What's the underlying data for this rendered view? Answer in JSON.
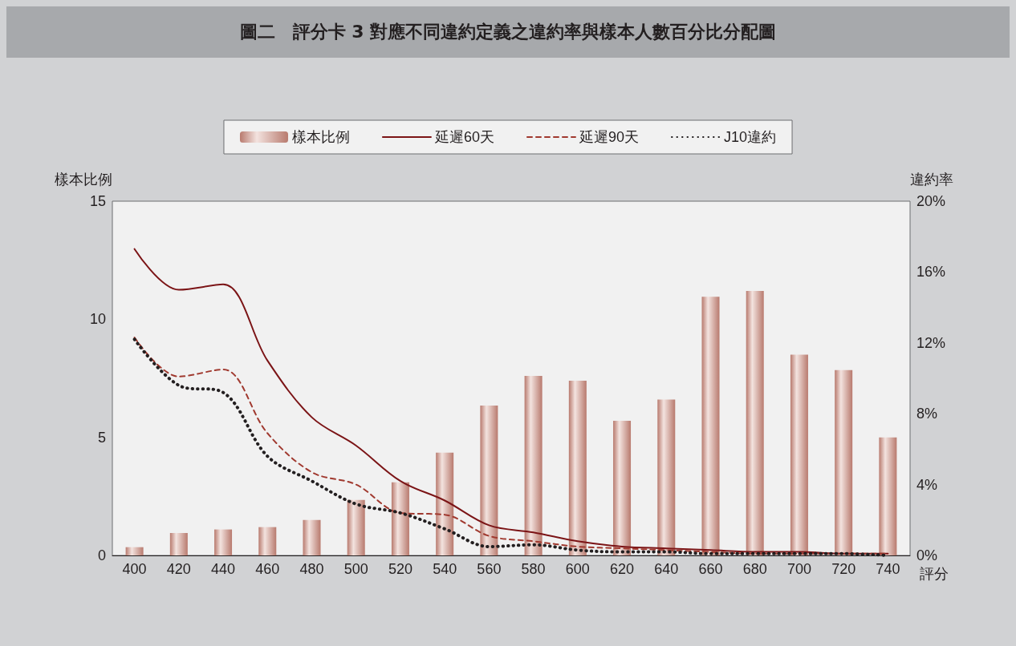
{
  "chart_data": {
    "type": "bar",
    "title": "圖二　評分卡 3 對應不同違約定義之違約率與樣本人數百分比分配圖",
    "xlabel": "評分",
    "ylabel": "樣本比例",
    "y2label": "違約率",
    "categories": [
      "400",
      "420",
      "440",
      "460",
      "480",
      "500",
      "520",
      "540",
      "560",
      "580",
      "600",
      "620",
      "640",
      "660",
      "680",
      "700",
      "720",
      "740"
    ],
    "series": [
      {
        "name": "樣本比例",
        "color": "#b87a6e",
        "values": [
          0.35,
          0.95,
          1.1,
          1.2,
          1.5,
          2.35,
          3.1,
          4.35,
          6.35,
          7.6,
          7.4,
          5.7,
          6.6,
          10.95,
          11.2,
          8.5,
          7.85,
          5.0
        ]
      },
      {
        "name": "延遲60天",
        "type": "line",
        "axis": "y2",
        "color": "#7b1416",
        "line_style": "solid",
        "values": [
          17.3,
          15.0,
          15.3,
          11.0,
          7.8,
          6.2,
          4.2,
          3.1,
          1.7,
          1.3,
          0.8,
          0.5,
          0.4,
          0.3,
          0.2,
          0.2,
          0.1,
          0.1
        ]
      },
      {
        "name": "延遲90天",
        "type": "line",
        "axis": "y2",
        "color": "#a0392f",
        "line_style": "dashed",
        "values": [
          12.3,
          10.1,
          10.5,
          6.9,
          4.7,
          4.0,
          2.4,
          2.3,
          1.1,
          0.8,
          0.5,
          0.4,
          0.3,
          0.2,
          0.1,
          0.1,
          0.1,
          0.1
        ]
      },
      {
        "name": "J10違約",
        "type": "line",
        "axis": "y2",
        "color": "#231f20",
        "line_style": "dotted",
        "values": [
          12.2,
          9.6,
          9.2,
          5.6,
          4.2,
          2.9,
          2.4,
          1.5,
          0.5,
          0.6,
          0.3,
          0.2,
          0.2,
          0.1,
          0.1,
          0.1,
          0.1,
          0.0
        ]
      }
    ],
    "ylim": [
      0,
      15
    ],
    "yticks": [
      0,
      5,
      10,
      15
    ],
    "y2lim": [
      0,
      20
    ],
    "y2ticks": [
      {
        "value": 0,
        "label": "0%"
      },
      {
        "value": 4,
        "label": "4%"
      },
      {
        "value": 8,
        "label": "8%"
      },
      {
        "value": 12,
        "label": "12%"
      },
      {
        "value": 16,
        "label": "16%"
      },
      {
        "value": 20,
        "label": "20%"
      }
    ],
    "grid": false,
    "legend": "top",
    "marker": "none"
  }
}
